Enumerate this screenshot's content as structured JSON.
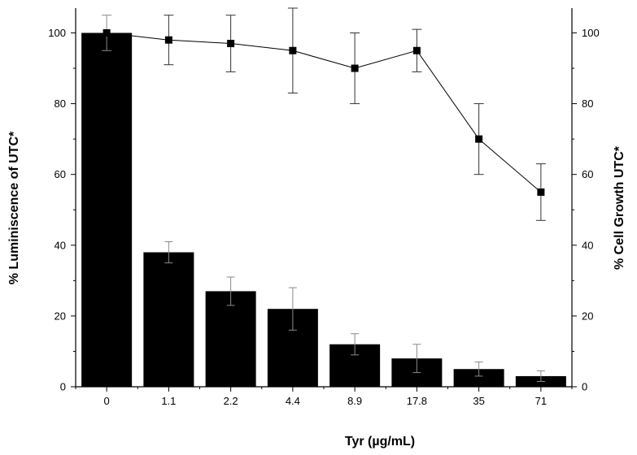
{
  "chart_data": {
    "type": "bar",
    "title": "",
    "xlabel": "Tyr (µg/mL)",
    "ylabel_left": "% Luminiscence of UTC*",
    "ylabel_right": "% Cell Growth UTC*",
    "categories": [
      "0",
      "1.1",
      "2.2",
      "4.4",
      "8.9",
      "17.8",
      "35",
      "71"
    ],
    "ylim_left": [
      0,
      107
    ],
    "ylim_right": [
      0,
      107
    ],
    "yticks_left": [
      0,
      20,
      40,
      60,
      80,
      100
    ],
    "yticks_right": [
      0,
      20,
      40,
      60,
      80,
      100
    ],
    "grid": false,
    "legend": "none",
    "series": [
      {
        "kind": "bar",
        "axis": "left",
        "color": "#000000",
        "values": [
          100,
          38,
          27,
          22,
          12,
          8,
          5,
          3
        ],
        "errors": [
          0,
          3,
          4,
          6,
          3,
          4,
          2,
          1.5
        ]
      },
      {
        "kind": "line",
        "axis": "right",
        "color": "#000000",
        "marker": "square",
        "values": [
          100,
          98,
          97,
          95,
          90,
          95,
          70,
          55
        ],
        "errors": [
          5,
          7,
          8,
          12,
          10,
          6,
          10,
          8
        ]
      }
    ]
  }
}
